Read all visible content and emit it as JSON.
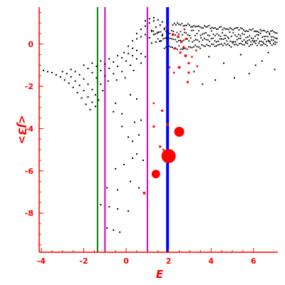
{
  "chart_data": {
    "type": "scatter",
    "title": "",
    "xlabel": "E",
    "ylabel": "<J3>",
    "xlim": [
      -4.1,
      7.15
    ],
    "ylim": [
      -9.85,
      1.75
    ],
    "x_ticks": [
      -4,
      -2,
      0,
      2,
      4,
      6
    ],
    "y_ticks": [
      0,
      -2,
      -4,
      -6,
      -8
    ],
    "x_tick_labels": [
      "-4",
      "-2",
      "0",
      "2",
      "4",
      "6"
    ],
    "y_tick_labels": [
      "0",
      "-2",
      "-4",
      "-6",
      "-8"
    ],
    "grid": false,
    "legend": "none",
    "colors": {
      "axis": "#ff0000",
      "black_points": "#000000",
      "red_points": "#ff0000",
      "green_line": "#008000",
      "magenta_line": "#cc00cc",
      "blue_line": "#0000ff"
    },
    "vertical_lines": [
      {
        "x": -1.35,
        "color": "#008000",
        "width": 2
      },
      {
        "x": -1.0,
        "color": "#cc00cc",
        "width": 2
      },
      {
        "x": 1.0,
        "color": "#cc00cc",
        "width": 2
      },
      {
        "x": 1.95,
        "color": "#0000ff",
        "width": 4
      }
    ],
    "red_points": [
      {
        "x": 2.0,
        "y": -5.3,
        "size": 10
      },
      {
        "x": 2.5,
        "y": -4.15,
        "size": 7
      },
      {
        "x": 1.4,
        "y": -6.15,
        "size": 6
      },
      {
        "x": 0.85,
        "y": -7.05,
        "size": 2.5
      },
      {
        "x": 1.3,
        "y": -3.9,
        "size": 2
      },
      {
        "x": 1.7,
        "y": -3.15,
        "size": 2
      },
      {
        "x": 1.3,
        "y": -2.8,
        "size": 1.5
      },
      {
        "x": 1.95,
        "y": -3.8,
        "size": 2.5
      },
      {
        "x": 1.6,
        "y": -4.85,
        "size": 2
      },
      {
        "x": 1.75,
        "y": -5.0,
        "size": 1.5
      },
      {
        "x": 2.2,
        "y": 0.45,
        "size": 2.5
      },
      {
        "x": 2.45,
        "y": 0.35,
        "size": 2.5
      },
      {
        "x": 2.6,
        "y": 0.1,
        "size": 2
      },
      {
        "x": 2.85,
        "y": 0.25,
        "size": 2
      },
      {
        "x": 2.3,
        "y": -0.2,
        "size": 2
      },
      {
        "x": 2.55,
        "y": -0.4,
        "size": 2
      },
      {
        "x": 2.8,
        "y": -0.55,
        "size": 2.5
      },
      {
        "x": 3.1,
        "y": -0.6,
        "size": 1.5
      },
      {
        "x": 2.05,
        "y": -1.1,
        "size": 1.5
      },
      {
        "x": 2.5,
        "y": -1.1,
        "size": 2.5
      },
      {
        "x": 2.95,
        "y": -0.9,
        "size": 2
      },
      {
        "x": 3.35,
        "y": -1.05,
        "size": 1.5
      },
      {
        "x": 2.25,
        "y": -1.35,
        "size": 1.5
      },
      {
        "x": 2.95,
        "y": -1.35,
        "size": 2
      },
      {
        "x": 2.9,
        "y": -1.8,
        "size": 2
      },
      {
        "x": 2.75,
        "y": 0.7,
        "size": 1.5
      },
      {
        "x": 1.9,
        "y": 0.8,
        "size": 1.5
      },
      {
        "x": 2.7,
        "y": -0.15,
        "size": 2
      },
      {
        "x": 3.3,
        "y": -0.3,
        "size": 1.5
      }
    ],
    "black_points": [
      {
        "x": -3.9,
        "y": -1.25
      },
      {
        "x": -3.7,
        "y": -1.3
      },
      {
        "x": -3.5,
        "y": -1.35
      },
      {
        "x": -3.3,
        "y": -1.45
      },
      {
        "x": -3.1,
        "y": -1.55
      },
      {
        "x": -2.9,
        "y": -1.7
      },
      {
        "x": -2.7,
        "y": -1.85
      },
      {
        "x": -2.5,
        "y": -2.05
      },
      {
        "x": -2.3,
        "y": -2.3
      },
      {
        "x": -2.1,
        "y": -2.55
      },
      {
        "x": -1.9,
        "y": -2.85
      },
      {
        "x": -1.7,
        "y": -3.1
      },
      {
        "x": -3.0,
        "y": -1.3
      },
      {
        "x": -2.8,
        "y": -1.4
      },
      {
        "x": -2.6,
        "y": -1.55
      },
      {
        "x": -2.4,
        "y": -1.75
      },
      {
        "x": -2.2,
        "y": -1.95
      },
      {
        "x": -2.0,
        "y": -2.2
      },
      {
        "x": -1.8,
        "y": -2.5
      },
      {
        "x": -1.6,
        "y": -2.75
      },
      {
        "x": -1.45,
        "y": -2.95
      },
      {
        "x": -2.6,
        "y": -1.2
      },
      {
        "x": -2.4,
        "y": -1.3
      },
      {
        "x": -2.2,
        "y": -1.45
      },
      {
        "x": -2.0,
        "y": -1.65
      },
      {
        "x": -1.8,
        "y": -1.9
      },
      {
        "x": -1.6,
        "y": -2.15
      },
      {
        "x": -1.45,
        "y": -2.4
      },
      {
        "x": -1.3,
        "y": -2.65
      },
      {
        "x": -2.0,
        "y": -1.0
      },
      {
        "x": -1.8,
        "y": -1.15
      },
      {
        "x": -1.6,
        "y": -1.35
      },
      {
        "x": -1.4,
        "y": -1.6
      },
      {
        "x": -1.2,
        "y": -1.9
      },
      {
        "x": -1.1,
        "y": -2.2
      },
      {
        "x": -1.6,
        "y": -0.9
      },
      {
        "x": -1.4,
        "y": -1.05
      },
      {
        "x": -1.2,
        "y": -1.25
      },
      {
        "x": -1.0,
        "y": -1.5
      },
      {
        "x": -0.85,
        "y": -1.75
      },
      {
        "x": -1.2,
        "y": -0.8
      },
      {
        "x": -1.0,
        "y": -0.95
      },
      {
        "x": -0.8,
        "y": -1.15
      },
      {
        "x": -0.6,
        "y": -1.4
      },
      {
        "x": -0.45,
        "y": -1.7
      },
      {
        "x": -0.8,
        "y": -0.7
      },
      {
        "x": -0.6,
        "y": -0.85
      },
      {
        "x": -0.4,
        "y": -1.05
      },
      {
        "x": -0.2,
        "y": -1.3
      },
      {
        "x": -0.05,
        "y": -1.6
      },
      {
        "x": -0.4,
        "y": -0.55
      },
      {
        "x": -0.2,
        "y": -0.65
      },
      {
        "x": 0.0,
        "y": -0.8
      },
      {
        "x": 0.2,
        "y": -1.0
      },
      {
        "x": 0.35,
        "y": -1.25
      },
      {
        "x": -0.1,
        "y": -0.4
      },
      {
        "x": 0.1,
        "y": -0.45
      },
      {
        "x": 0.3,
        "y": -0.55
      },
      {
        "x": 0.5,
        "y": -0.7
      },
      {
        "x": 0.7,
        "y": -0.9
      },
      {
        "x": 0.1,
        "y": -0.1
      },
      {
        "x": 0.3,
        "y": -0.2
      },
      {
        "x": 0.5,
        "y": -0.3
      },
      {
        "x": 0.7,
        "y": -0.45
      },
      {
        "x": 0.9,
        "y": -0.6
      },
      {
        "x": 0.3,
        "y": 0.15
      },
      {
        "x": 0.5,
        "y": 0.25
      },
      {
        "x": 0.7,
        "y": 0.35
      },
      {
        "x": 0.9,
        "y": 0.45
      },
      {
        "x": 0.5,
        "y": 0.5
      },
      {
        "x": 0.7,
        "y": 0.7
      },
      {
        "x": 0.9,
        "y": 0.85
      },
      {
        "x": 1.1,
        "y": 1.0
      },
      {
        "x": 1.3,
        "y": 1.1
      },
      {
        "x": 0.9,
        "y": 1.1
      },
      {
        "x": 1.1,
        "y": 1.2
      },
      {
        "x": 1.3,
        "y": 1.25
      },
      {
        "x": 1.5,
        "y": 1.15
      },
      {
        "x": 1.7,
        "y": 1.05
      },
      {
        "x": 1.2,
        "y": 0.65
      },
      {
        "x": 1.4,
        "y": 0.8
      },
      {
        "x": 1.6,
        "y": 0.9
      },
      {
        "x": 1.8,
        "y": 0.75
      },
      {
        "x": 1.1,
        "y": 0.3
      },
      {
        "x": 1.3,
        "y": 0.45
      },
      {
        "x": 1.5,
        "y": 0.55
      },
      {
        "x": 1.7,
        "y": 0.4
      },
      {
        "x": 1.9,
        "y": 0.3
      },
      {
        "x": 1.2,
        "y": 0.05
      },
      {
        "x": 1.4,
        "y": 0.1
      },
      {
        "x": 1.6,
        "y": 0.15
      },
      {
        "x": -0.9,
        "y": -8.7
      },
      {
        "x": -0.6,
        "y": -8.8
      },
      {
        "x": -0.3,
        "y": -8.9
      },
      {
        "x": -1.2,
        "y": -7.6
      },
      {
        "x": -0.8,
        "y": -7.7
      },
      {
        "x": -0.4,
        "y": -7.8
      },
      {
        "x": 0.1,
        "y": -7.9
      },
      {
        "x": -0.9,
        "y": -6.8
      },
      {
        "x": -0.4,
        "y": -6.9
      },
      {
        "x": 0.2,
        "y": -6.5
      },
      {
        "x": 0.6,
        "y": -6.8
      },
      {
        "x": -0.5,
        "y": -5.9
      },
      {
        "x": -0.1,
        "y": -5.7
      },
      {
        "x": 0.3,
        "y": -5.4
      },
      {
        "x": 0.5,
        "y": -5.2
      },
      {
        "x": 0.8,
        "y": -5.5
      },
      {
        "x": 0.1,
        "y": -4.4
      },
      {
        "x": 0.3,
        "y": -4.6
      },
      {
        "x": 0.6,
        "y": -4.3
      },
      {
        "x": 0.4,
        "y": -3.7
      },
      {
        "x": 0.7,
        "y": -3.6
      },
      {
        "x": -0.2,
        "y": -3.9
      },
      {
        "x": -0.6,
        "y": -3.2
      },
      {
        "x": -0.2,
        "y": -3.3
      },
      {
        "x": 0.2,
        "y": -2.4
      },
      {
        "x": 0.5,
        "y": -2.6
      },
      {
        "x": -0.5,
        "y": -2.8
      },
      {
        "x": 4.2,
        "y": -1.7
      },
      {
        "x": 3.6,
        "y": -1.9
      },
      {
        "x": 5.1,
        "y": -1.6
      },
      {
        "x": 6.1,
        "y": -1.0
      },
      {
        "x": 6.4,
        "y": -0.8
      },
      {
        "x": 7.0,
        "y": -1.2
      },
      {
        "x": 5.8,
        "y": -1.4
      },
      {
        "x": 4.6,
        "y": -0.9
      },
      {
        "x": 3.2,
        "y": -1.3
      },
      {
        "x": 3.9,
        "y": -0.6
      },
      {
        "x": 5.4,
        "y": -0.5
      },
      {
        "x": 6.7,
        "y": -0.4
      }
    ],
    "band_clusters": [
      {
        "x_start": 1.2,
        "x_end": 7.1,
        "y_start": 0.6,
        "y_end": 0.35,
        "spread": 0.14
      },
      {
        "x_start": 1.5,
        "x_end": 7.1,
        "y_start": 0.2,
        "y_end": 0.2,
        "spread": 0.1
      },
      {
        "x_start": 1.8,
        "x_end": 7.1,
        "y_start": -0.2,
        "y_end": 0.05,
        "spread": 0.1
      },
      {
        "x_start": 2.2,
        "x_end": 7.1,
        "y_start": 0.95,
        "y_end": 0.55,
        "spread": 0.08
      }
    ]
  }
}
